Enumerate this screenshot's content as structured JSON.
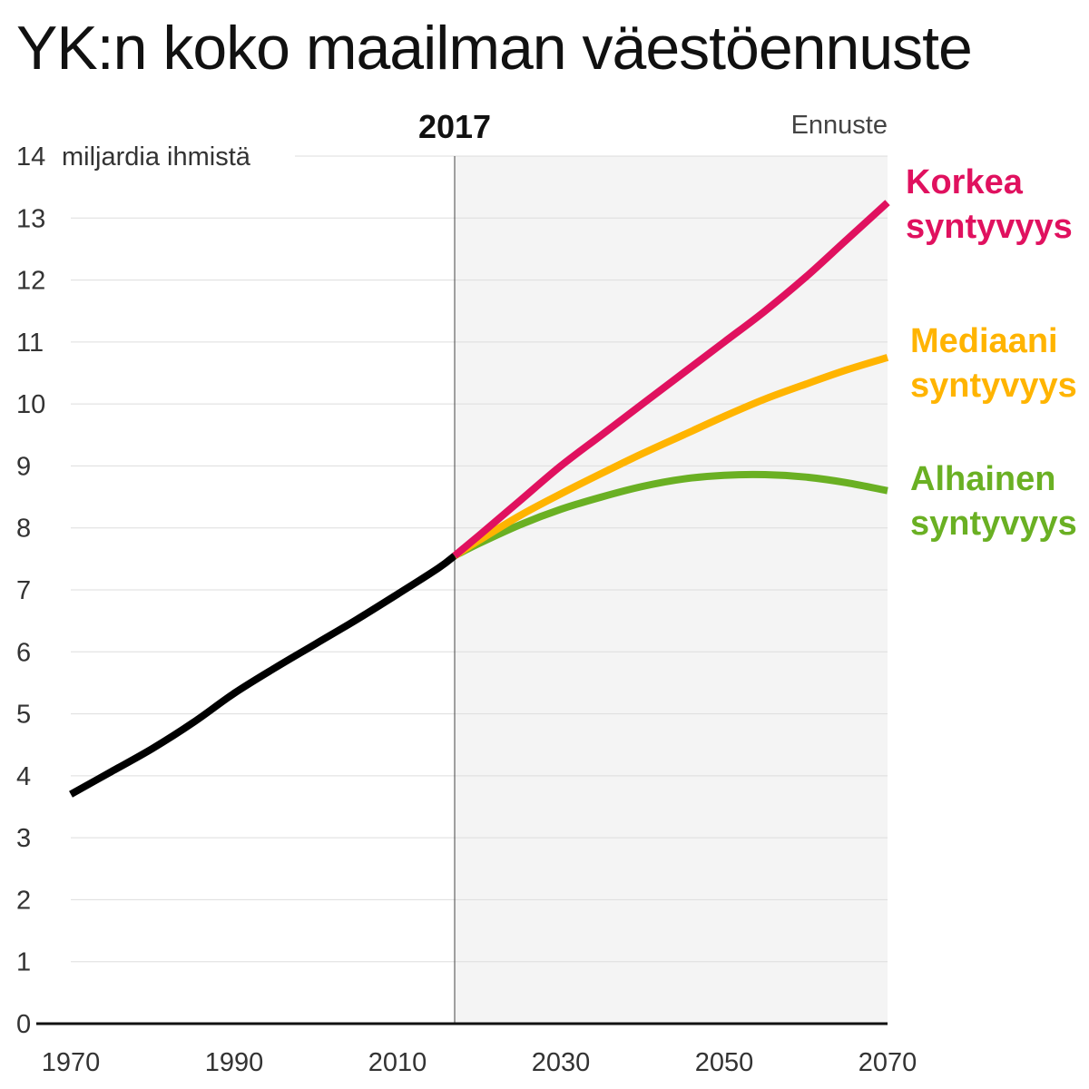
{
  "title": "YK:n koko maailman väestöennuste",
  "chart_data": {
    "type": "line",
    "ylabel": "miljardia ihmistä",
    "ylim": [
      0,
      14
    ],
    "yticks": [
      0,
      1,
      2,
      3,
      4,
      5,
      6,
      7,
      8,
      9,
      10,
      11,
      12,
      13,
      14
    ],
    "xlim": [
      1970,
      2070
    ],
    "xticks": [
      1970,
      1990,
      2010,
      2030,
      2050,
      2070
    ],
    "grid": true,
    "marker_year": 2017,
    "marker_label": "2017",
    "forecast_label": "Ennuste",
    "forecast_shaded_from": 2017,
    "colors": {
      "historical": "#000000",
      "high": "#e0115f",
      "median": "#ffb400",
      "low": "#6ab023",
      "forecast_bg": "#f4f4f4"
    },
    "series": [
      {
        "key": "historical",
        "x": [
          1970,
          1975,
          1980,
          1985,
          1990,
          1995,
          2000,
          2005,
          2010,
          2015,
          2017
        ],
        "values": [
          3.7,
          4.07,
          4.44,
          4.86,
          5.33,
          5.74,
          6.13,
          6.52,
          6.93,
          7.35,
          7.55
        ]
      },
      {
        "key": "high",
        "name_line1": "Korkea",
        "name_line2": "syntyvyys",
        "x": [
          2017,
          2020,
          2025,
          2030,
          2035,
          2040,
          2045,
          2050,
          2055,
          2060,
          2065,
          2070
        ],
        "values": [
          7.55,
          7.88,
          8.44,
          9.0,
          9.5,
          10.0,
          10.5,
          11.0,
          11.5,
          12.05,
          12.65,
          13.25
        ]
      },
      {
        "key": "median",
        "name_line1": "Mediaani",
        "name_line2": "syntyvyys",
        "x": [
          2017,
          2020,
          2025,
          2030,
          2035,
          2040,
          2045,
          2050,
          2055,
          2060,
          2065,
          2070
        ],
        "values": [
          7.55,
          7.8,
          8.2,
          8.55,
          8.88,
          9.2,
          9.5,
          9.8,
          10.08,
          10.32,
          10.55,
          10.75
        ]
      },
      {
        "key": "low",
        "name_line1": "Alhainen",
        "name_line2": "syntyvyys",
        "x": [
          2017,
          2020,
          2025,
          2030,
          2035,
          2040,
          2045,
          2050,
          2055,
          2060,
          2065,
          2070
        ],
        "values": [
          7.55,
          7.75,
          8.05,
          8.3,
          8.5,
          8.67,
          8.79,
          8.85,
          8.86,
          8.82,
          8.73,
          8.6
        ]
      }
    ]
  }
}
